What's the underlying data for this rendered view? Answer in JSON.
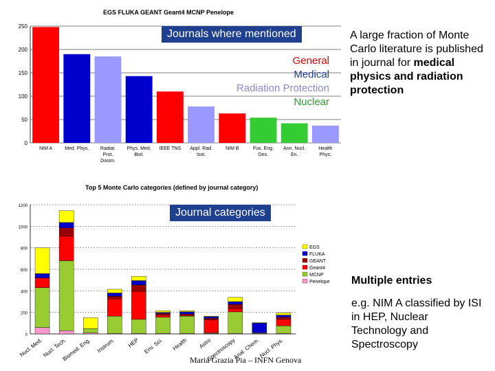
{
  "chart_data": [
    {
      "type": "bar",
      "title": "EGS FLUKA GEANT Geant4 MCNP Penelope",
      "categories": [
        "NIM A",
        "Med. Phys.",
        "Radiat. Prot. Dosim.",
        "Phys. Med. Biol.",
        "IEEE TNS",
        "Appl. Rad. Isot.",
        "NIM B",
        "Fus. Eng. Des.",
        "Ann. Nucl. En.",
        "Health Phys."
      ],
      "values": [
        248,
        190,
        185,
        143,
        110,
        78,
        63,
        54,
        42,
        37
      ],
      "bar_groups": [
        "General",
        "Medical",
        "Radiation Protection",
        "Medical",
        "General",
        "Radiation Protection",
        "General",
        "Nuclear",
        "Nuclear",
        "Radiation Protection"
      ],
      "ylim": [
        0,
        250
      ],
      "yticks": [
        0,
        50,
        100,
        150,
        200,
        250
      ],
      "grid": true,
      "legend": {
        "placement": "top-right",
        "entries": [
          {
            "label": "General",
            "color": "#ff0000"
          },
          {
            "label": "Medical",
            "color": "#0000cc"
          },
          {
            "label": "Radiation Protection",
            "color": "#9999ff"
          },
          {
            "label": "Nuclear",
            "color": "#33cc33"
          }
        ]
      },
      "callout": "Journals where mentioned"
    },
    {
      "type": "bar",
      "stacked": true,
      "title": "Top 5 Monte Carlo categories (defined by journal category)",
      "categories": [
        "Nucl. Med.",
        "Nucl. Tech.",
        "Biomed. Eng.",
        "Instrum.",
        "HEP",
        "Env. Sci.",
        "Health",
        "Astro",
        "Spectroscopy",
        "Anal. Chem.",
        "Nucl. Phys."
      ],
      "series": [
        {
          "name": "Penelope",
          "color": "#ff99cc",
          "values": [
            60,
            30,
            10,
            5,
            5,
            5,
            5,
            5,
            5,
            5,
            5
          ]
        },
        {
          "name": "MCNP",
          "color": "#99cc33",
          "values": [
            370,
            650,
            40,
            160,
            130,
            150,
            160,
            5,
            200,
            5,
            70
          ]
        },
        {
          "name": "Geant4",
          "color": "#ff0000",
          "values": [
            90,
            230,
            0,
            160,
            260,
            20,
            0,
            120,
            30,
            0,
            60
          ]
        },
        {
          "name": "GEANT",
          "color": "#990000",
          "values": [
            0,
            75,
            0,
            25,
            60,
            15,
            20,
            15,
            40,
            0,
            20
          ]
        },
        {
          "name": "FLUKA",
          "color": "#0000cc",
          "values": [
            40,
            50,
            0,
            30,
            40,
            10,
            20,
            15,
            25,
            90,
            20
          ]
        },
        {
          "name": "EGS",
          "color": "#ffff00",
          "values": [
            240,
            110,
            100,
            35,
            40,
            15,
            10,
            5,
            40,
            5,
            20
          ]
        }
      ],
      "ylim": [
        0,
        1200
      ],
      "yticks": [
        0,
        200,
        400,
        600,
        800,
        1000,
        1200
      ],
      "grid": true,
      "legend_placement": "right",
      "callout": "Journal categories"
    }
  ],
  "text": {
    "right_paragraph_plain": "A large fraction of Monte Carlo literature is published in journal for",
    "right_paragraph_bold": "medical physics and radiation protection",
    "multiple_entries": "Multiple entries",
    "multiple_entries_detail": "e.g. NIM A classified by ISI in HEP, Nuclear Technology and Spectroscopy",
    "footer": "Maria Grazia Pia – INFN Genova"
  }
}
